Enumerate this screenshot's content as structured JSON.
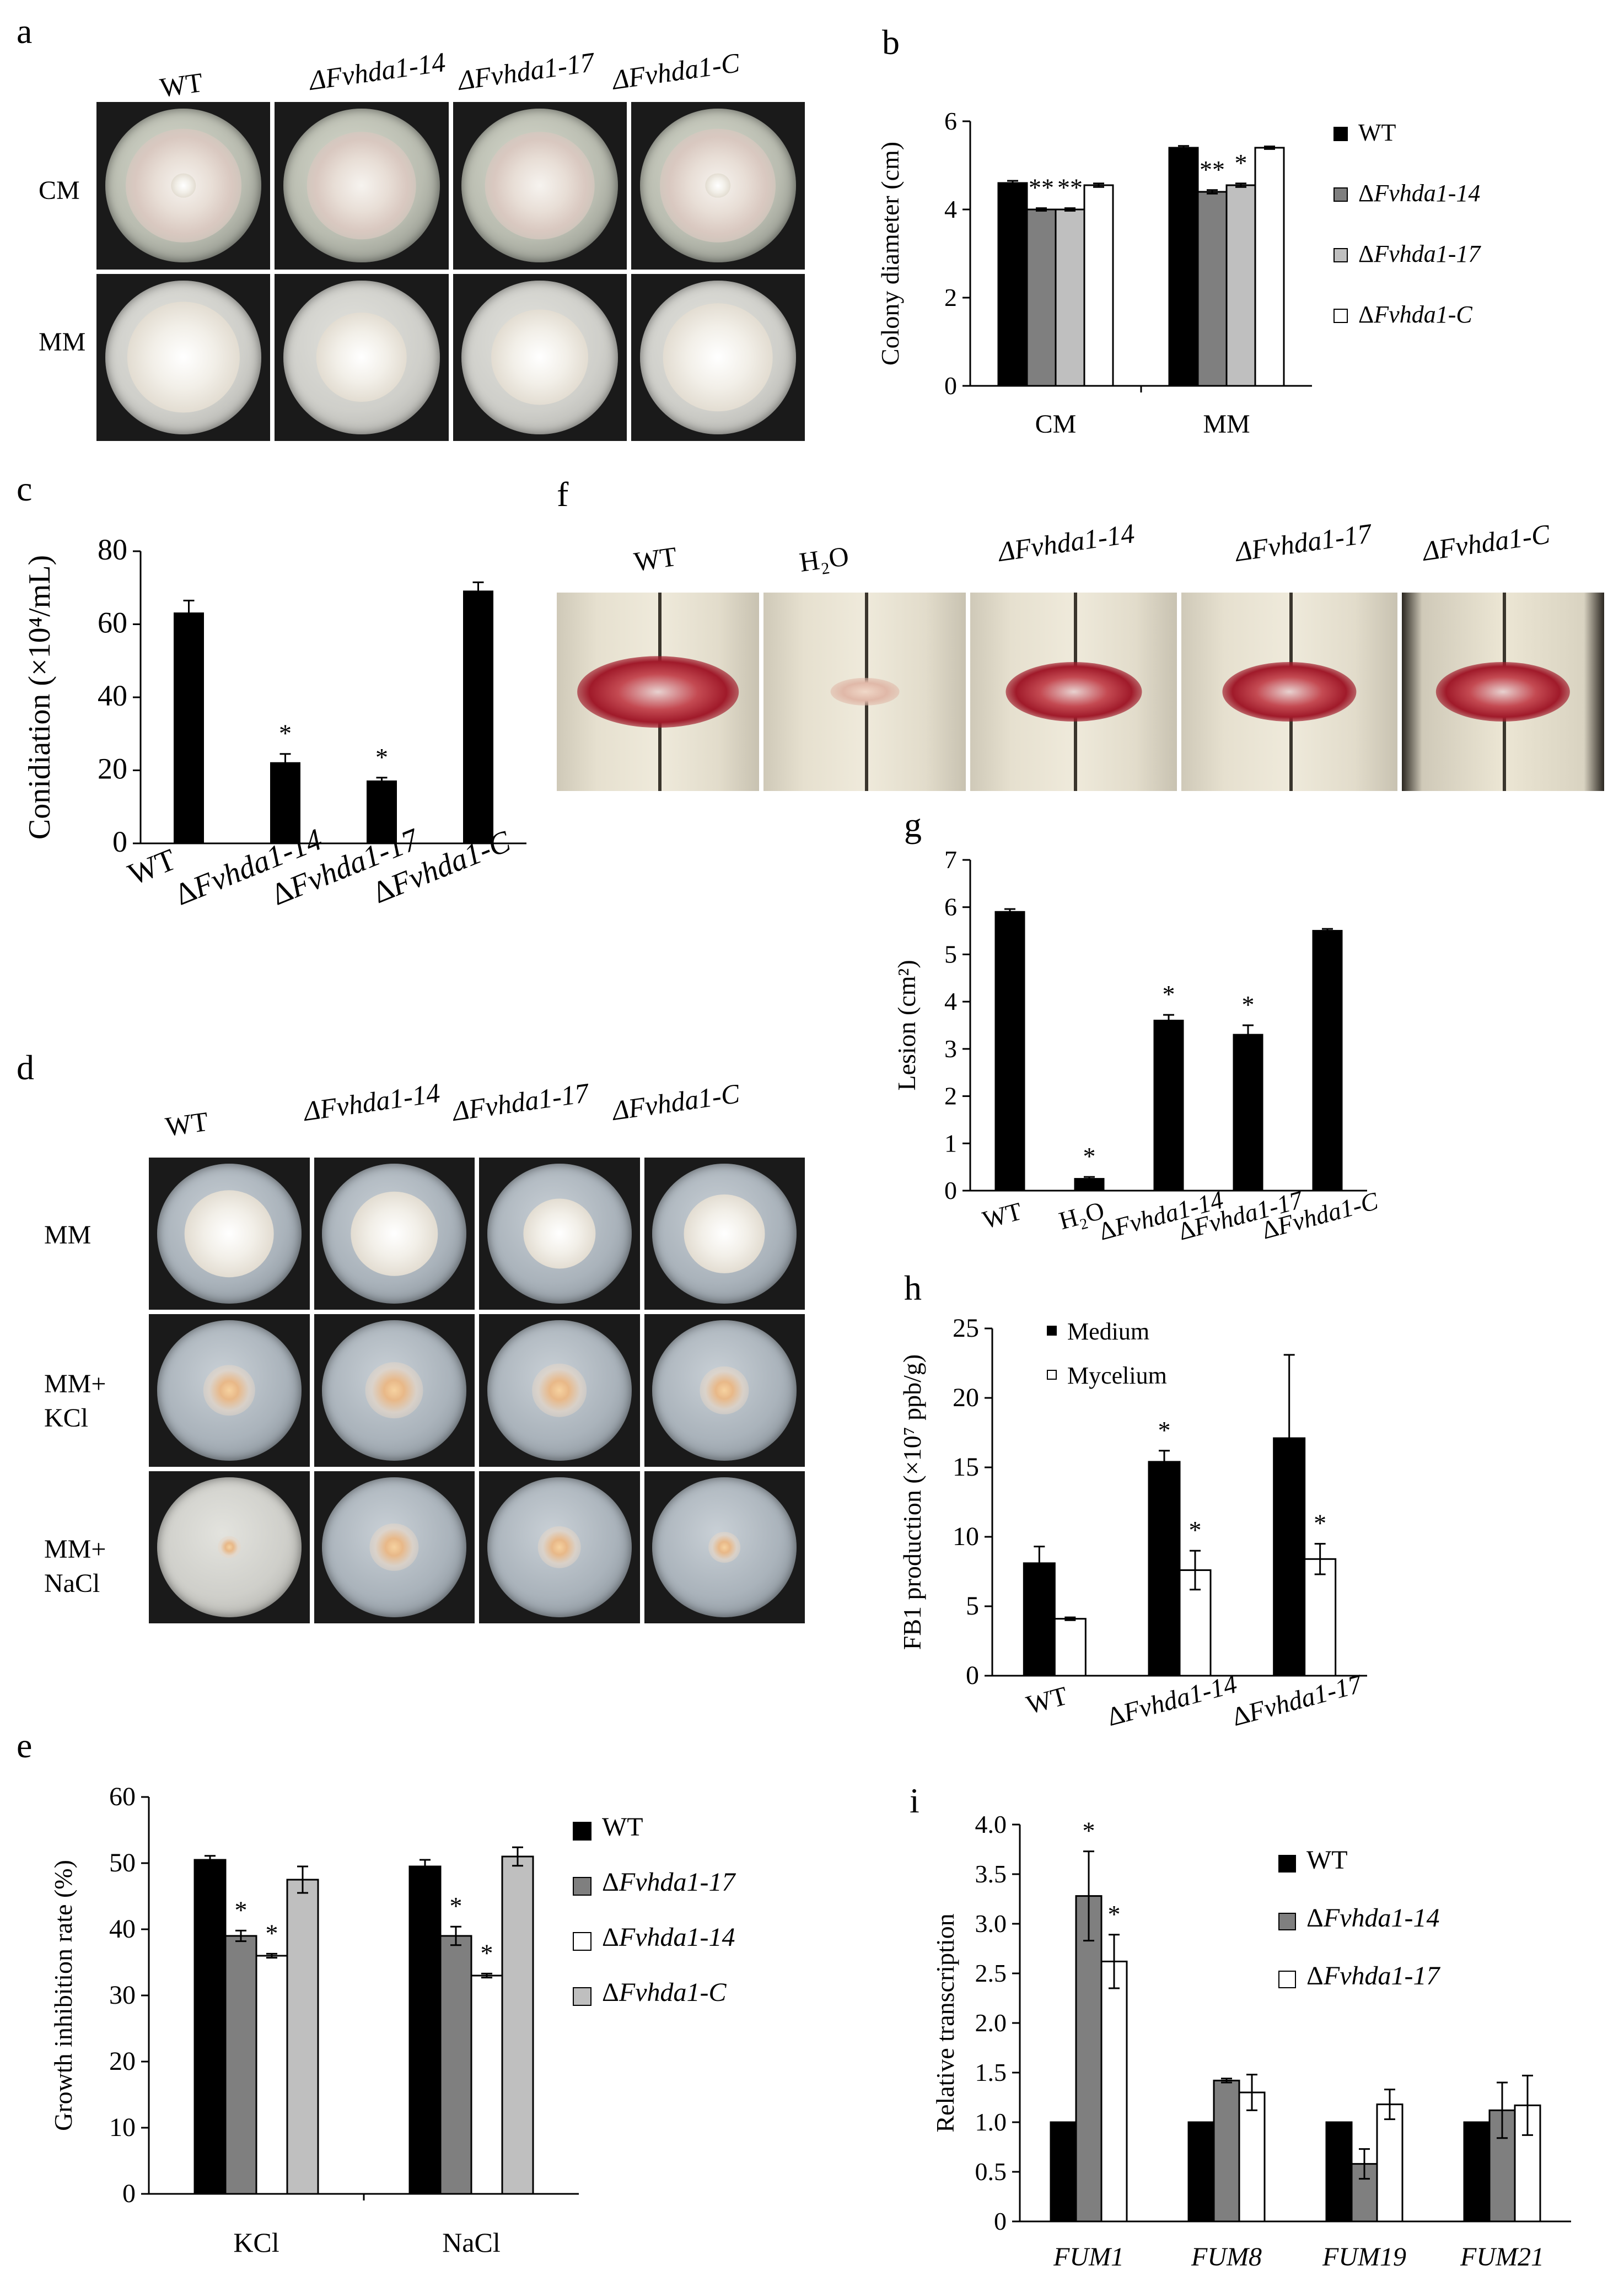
{
  "panel_letters": {
    "a": "a",
    "b": "b",
    "c": "c",
    "d": "d",
    "e": "e",
    "f": "f",
    "g": "g",
    "h": "h",
    "i": "i"
  },
  "panel_a": {
    "col_labels": [
      "WT",
      "ΔFvhda1-14",
      "ΔFvhda1-17",
      "ΔFvhda1-C"
    ],
    "row_labels": [
      "CM",
      "MM"
    ]
  },
  "panel_d": {
    "col_labels": [
      "WT",
      "ΔFvhda1-14",
      "ΔFvhda1-17",
      "ΔFvhda1-C"
    ],
    "row_labels": [
      "MM",
      "MM+\nKCl",
      "MM+\nNaCl"
    ]
  },
  "panel_f": {
    "col_labels": [
      "WT",
      "H₂O",
      "ΔFvhda1-14",
      "ΔFvhda1-17",
      "ΔFvhda1-C"
    ]
  },
  "colors": {
    "black": "#000000",
    "dark_grey": "#7f7f7f",
    "light_grey": "#bfbfbf",
    "white": "#ffffff"
  },
  "chart_data": [
    {
      "id": "b",
      "type": "bar",
      "ylabel": "Colony diameter (cm)",
      "categories": [
        "CM",
        "MM"
      ],
      "yticks": [
        0,
        2,
        4,
        6
      ],
      "ylim": [
        0,
        6
      ],
      "legend_position": "right",
      "series": [
        {
          "name": "WT",
          "color": "#000000",
          "values": [
            4.6,
            5.4
          ],
          "errors": [
            0.05,
            0.04
          ],
          "marks": [
            "",
            ""
          ]
        },
        {
          "name": "ΔFvhda1-14",
          "color": "#7f7f7f",
          "values": [
            4.0,
            4.4
          ],
          "errors": [
            0.03,
            0.04
          ],
          "marks": [
            "**",
            "**"
          ]
        },
        {
          "name": "ΔFvhda1-17",
          "color": "#bfbfbf",
          "values": [
            4.0,
            4.55
          ],
          "errors": [
            0.03,
            0.04
          ],
          "marks": [
            "**",
            "*"
          ]
        },
        {
          "name": "ΔFvhda1-C",
          "color": "#ffffff",
          "values": [
            4.55,
            5.4
          ],
          "errors": [
            0.04,
            0.03
          ],
          "marks": [
            "",
            ""
          ]
        }
      ]
    },
    {
      "id": "c",
      "type": "bar",
      "ylabel": "Conidiation (×10⁴/mL)",
      "categories": [
        "WT",
        "ΔFvhda1-14",
        "ΔFvhda1-17",
        "ΔFvhda1-C"
      ],
      "yticks": [
        0,
        20,
        40,
        60,
        80
      ],
      "ylim": [
        0,
        80
      ],
      "series": [
        {
          "name": "",
          "color": "#000000",
          "values": [
            63,
            22,
            17,
            69
          ],
          "errors": [
            3.5,
            2.5,
            1.0,
            2.5
          ],
          "marks": [
            "",
            "*",
            "*",
            ""
          ]
        }
      ]
    },
    {
      "id": "e",
      "type": "bar",
      "ylabel": "Growth inhibition rate (%)",
      "categories": [
        "KCl",
        "NaCl"
      ],
      "yticks": [
        0,
        10,
        20,
        30,
        40,
        50,
        60
      ],
      "ylim": [
        0,
        60
      ],
      "legend_position": "right",
      "series": [
        {
          "name": "WT",
          "color": "#000000",
          "values": [
            50.5,
            49.5
          ],
          "errors": [
            0.6,
            1.0
          ],
          "marks": [
            "",
            ""
          ]
        },
        {
          "name": "ΔFvhda1-17",
          "color": "#7f7f7f",
          "values": [
            39,
            39
          ],
          "errors": [
            0.8,
            1.4
          ],
          "marks": [
            "*",
            "*"
          ]
        },
        {
          "name": "ΔFvhda1-14",
          "color": "#ffffff",
          "values": [
            36,
            33
          ],
          "errors": [
            0.3,
            0.3
          ],
          "marks": [
            "*",
            "*"
          ]
        },
        {
          "name": "ΔFvhda1-C",
          "color": "#bfbfbf",
          "values": [
            47.5,
            51
          ],
          "errors": [
            2.0,
            1.4
          ],
          "marks": [
            "",
            ""
          ]
        }
      ]
    },
    {
      "id": "g",
      "type": "bar",
      "ylabel": "Lesion (cm²)",
      "categories": [
        "WT",
        "H₂O",
        "ΔFvhda1-14",
        "ΔFvhda1-17",
        "ΔFvhda1-C"
      ],
      "yticks": [
        0,
        1,
        2,
        3,
        4,
        5,
        6,
        7
      ],
      "ylim": [
        0,
        7
      ],
      "series": [
        {
          "name": "",
          "color": "#000000",
          "values": [
            5.9,
            0.25,
            3.6,
            3.3,
            5.5
          ],
          "errors": [
            0.06,
            0.04,
            0.12,
            0.2,
            0.04
          ],
          "marks": [
            "",
            "*",
            "*",
            "*",
            ""
          ]
        }
      ]
    },
    {
      "id": "h",
      "type": "bar",
      "ylabel": "FB1 production (×10⁷ ppb/g)",
      "categories": [
        "WT",
        "ΔFvhda1-14",
        "ΔFvhda1-17"
      ],
      "yticks": [
        0,
        5,
        10,
        15,
        20,
        25
      ],
      "ylim": [
        0,
        25
      ],
      "legend_position": "top-left",
      "series": [
        {
          "name": "Medium",
          "color": "#000000",
          "values": [
            8.1,
            15.4,
            17.1
          ],
          "errors": [
            1.2,
            0.8,
            6.0
          ],
          "marks": [
            "",
            "*",
            ""
          ]
        },
        {
          "name": "Mycelium",
          "color": "#ffffff",
          "values": [
            4.1,
            7.6,
            8.4
          ],
          "errors": [
            0.1,
            1.4,
            1.1
          ],
          "marks": [
            "",
            "*",
            "*"
          ]
        }
      ]
    },
    {
      "id": "i",
      "type": "bar",
      "ylabel": "Relative transcription",
      "categories": [
        "FUM1",
        "FUM8",
        "FUM19",
        "FUM21"
      ],
      "yticks": [
        "0",
        "0.5",
        "1.0",
        "1.5",
        "2.0",
        "2.5",
        "3.0",
        "3.5",
        "4.0"
      ],
      "ylim": [
        0,
        4
      ],
      "legend_position": "right",
      "series": [
        {
          "name": "WT",
          "color": "#000000",
          "values": [
            1.0,
            1.0,
            1.0,
            1.0
          ],
          "errors": [
            0,
            0,
            0,
            0
          ],
          "marks": [
            "",
            "",
            "",
            ""
          ]
        },
        {
          "name": "ΔFvhda1-14",
          "color": "#7f7f7f",
          "values": [
            3.28,
            1.42,
            0.58,
            1.12
          ],
          "errors": [
            0.45,
            0.02,
            0.15,
            0.28
          ],
          "marks": [
            "*",
            "",
            "",
            ""
          ]
        },
        {
          "name": "ΔFvhda1-17",
          "color": "#ffffff",
          "values": [
            2.62,
            1.3,
            1.18,
            1.17
          ],
          "errors": [
            0.27,
            0.18,
            0.15,
            0.3
          ],
          "marks": [
            "*",
            "",
            "",
            ""
          ]
        }
      ]
    }
  ]
}
